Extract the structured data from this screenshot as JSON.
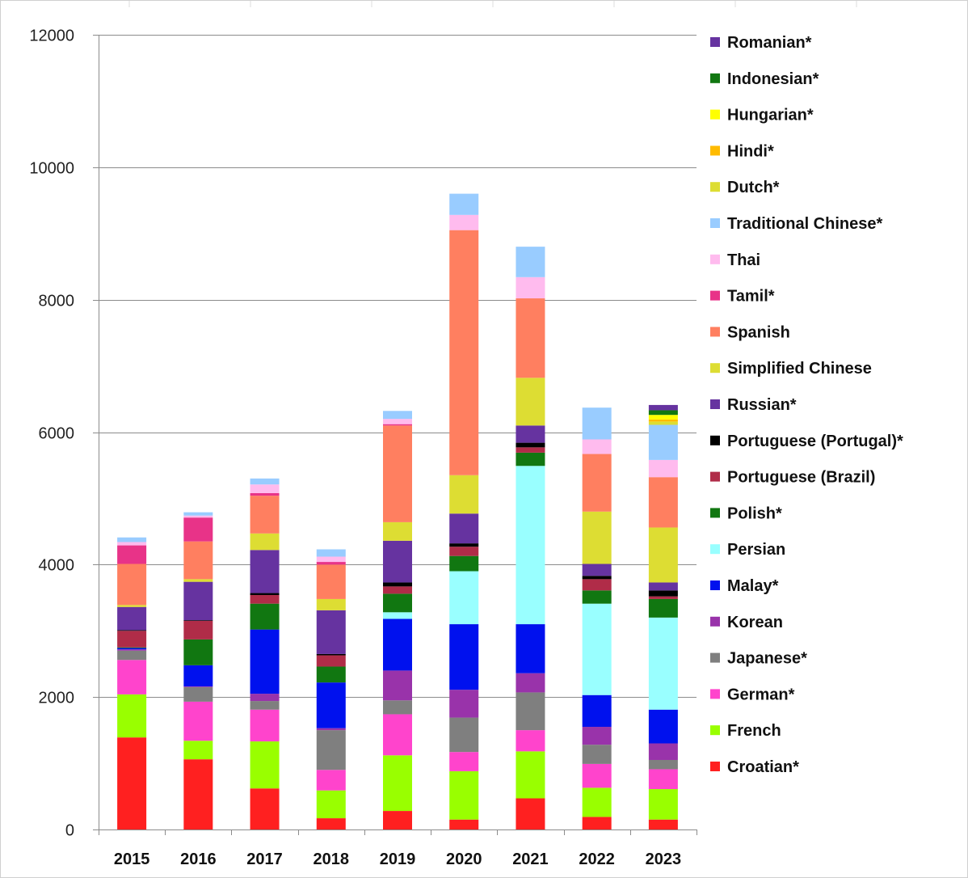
{
  "chart_data": {
    "type": "bar",
    "stacked": true,
    "categories": [
      "2015",
      "2016",
      "2017",
      "2018",
      "2019",
      "2020",
      "2021",
      "2022",
      "2023"
    ],
    "ylim": [
      0,
      12000
    ],
    "yticks": [
      0,
      2000,
      4000,
      6000,
      8000,
      10000,
      12000
    ],
    "grid": true,
    "legend_position": "right",
    "series": [
      {
        "name": "Croatian*",
        "color": "#ff2020",
        "values": [
          1390,
          1060,
          620,
          170,
          280,
          150,
          470,
          190,
          150
        ]
      },
      {
        "name": "French",
        "color": "#99ff00",
        "values": [
          650,
          280,
          710,
          420,
          840,
          730,
          710,
          440,
          460
        ]
      },
      {
        "name": "German*",
        "color": "#ff44cc",
        "values": [
          520,
          590,
          480,
          310,
          620,
          290,
          320,
          360,
          300
        ]
      },
      {
        "name": "Japanese*",
        "color": "#7f7f7f",
        "values": [
          140,
          220,
          130,
          600,
          210,
          520,
          570,
          290,
          140
        ]
      },
      {
        "name": "Korean",
        "color": "#9933aa",
        "values": [
          20,
          10,
          110,
          30,
          450,
          420,
          290,
          270,
          250
        ]
      },
      {
        "name": "Malay*",
        "color": "#0011ee",
        "values": [
          20,
          320,
          970,
          690,
          780,
          990,
          740,
          480,
          510
        ]
      },
      {
        "name": "Persian",
        "color": "#99ffff",
        "values": [
          0,
          0,
          0,
          0,
          100,
          800,
          2390,
          1380,
          1390
        ]
      },
      {
        "name": "Polish*",
        "color": "#117711",
        "values": [
          10,
          390,
          390,
          240,
          280,
          230,
          200,
          200,
          280
        ]
      },
      {
        "name": "Portuguese (Brazil)",
        "color": "#b02c48",
        "values": [
          250,
          280,
          130,
          170,
          110,
          140,
          80,
          170,
          40
        ]
      },
      {
        "name": "Portuguese (Portugal)*",
        "color": "#000000",
        "values": [
          10,
          10,
          30,
          20,
          60,
          50,
          70,
          50,
          90
        ]
      },
      {
        "name": "Russian*",
        "color": "#6633a0",
        "values": [
          350,
          580,
          650,
          660,
          630,
          450,
          260,
          180,
          120
        ]
      },
      {
        "name": "Simplified Chinese",
        "color": "#dddd33",
        "values": [
          30,
          40,
          250,
          170,
          280,
          580,
          720,
          790,
          830
        ]
      },
      {
        "name": "Spanish",
        "color": "#ff7f60",
        "values": [
          620,
          570,
          570,
          520,
          1460,
          3700,
          1200,
          870,
          760
        ]
      },
      {
        "name": "Tamil*",
        "color": "#e83388",
        "values": [
          280,
          360,
          40,
          40,
          20,
          0,
          0,
          0,
          0
        ]
      },
      {
        "name": "Thai",
        "color": "#ffbbee",
        "values": [
          50,
          30,
          130,
          80,
          80,
          230,
          320,
          220,
          260
        ]
      },
      {
        "name": "Traditional Chinese*",
        "color": "#99ccff",
        "values": [
          70,
          50,
          90,
          110,
          120,
          320,
          460,
          480,
          530
        ]
      },
      {
        "name": "Dutch*",
        "color": "#dddd33",
        "values": [
          0,
          0,
          0,
          0,
          0,
          0,
          0,
          0,
          50
        ]
      },
      {
        "name": "Hindi*",
        "color": "#ffbb00",
        "values": [
          0,
          0,
          0,
          0,
          0,
          0,
          0,
          0,
          30
        ]
      },
      {
        "name": "Hungarian*",
        "color": "#ffff00",
        "values": [
          0,
          0,
          0,
          0,
          0,
          0,
          0,
          0,
          70
        ]
      },
      {
        "name": "Indonesian*",
        "color": "#117711",
        "values": [
          0,
          0,
          0,
          0,
          0,
          0,
          0,
          0,
          70
        ]
      },
      {
        "name": "Romanian*",
        "color": "#6633a0",
        "values": [
          0,
          0,
          0,
          0,
          0,
          0,
          0,
          0,
          80
        ]
      }
    ]
  }
}
